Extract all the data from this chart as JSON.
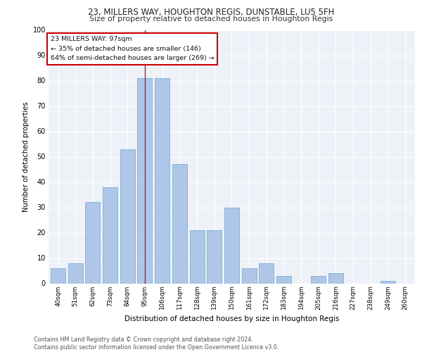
{
  "title1": "23, MILLERS WAY, HOUGHTON REGIS, DUNSTABLE, LU5 5FH",
  "title2": "Size of property relative to detached houses in Houghton Regis",
  "xlabel": "Distribution of detached houses by size in Houghton Regis",
  "ylabel": "Number of detached properties",
  "footnote": "Contains HM Land Registry data © Crown copyright and database right 2024.\nContains public sector information licensed under the Open Government Licence v3.0.",
  "annotation_line1": "23 MILLERS WAY: 97sqm",
  "annotation_line2": "← 35% of detached houses are smaller (146)",
  "annotation_line3": "64% of semi-detached houses are larger (269) →",
  "bar_labels": [
    "40sqm",
    "51sqm",
    "62sqm",
    "73sqm",
    "84sqm",
    "95sqm",
    "106sqm",
    "117sqm",
    "128sqm",
    "139sqm",
    "150sqm",
    "161sqm",
    "172sqm",
    "183sqm",
    "194sqm",
    "205sqm",
    "216sqm",
    "227sqm",
    "238sqm",
    "249sqm",
    "260sqm"
  ],
  "bar_values": [
    6,
    8,
    32,
    38,
    53,
    81,
    81,
    47,
    21,
    21,
    30,
    6,
    8,
    3,
    0,
    3,
    4,
    0,
    0,
    1,
    0
  ],
  "bar_color": "#aec6e8",
  "bar_edge_color": "#7aafd4",
  "vline_color": "#aa2222",
  "vline_x": 5,
  "annotation_box_color": "#cc0000",
  "background_color": "#eef2f8",
  "grid_color": "#ffffff",
  "ylim": [
    0,
    100
  ],
  "yticks": [
    0,
    10,
    20,
    30,
    40,
    50,
    60,
    70,
    80,
    90,
    100
  ]
}
